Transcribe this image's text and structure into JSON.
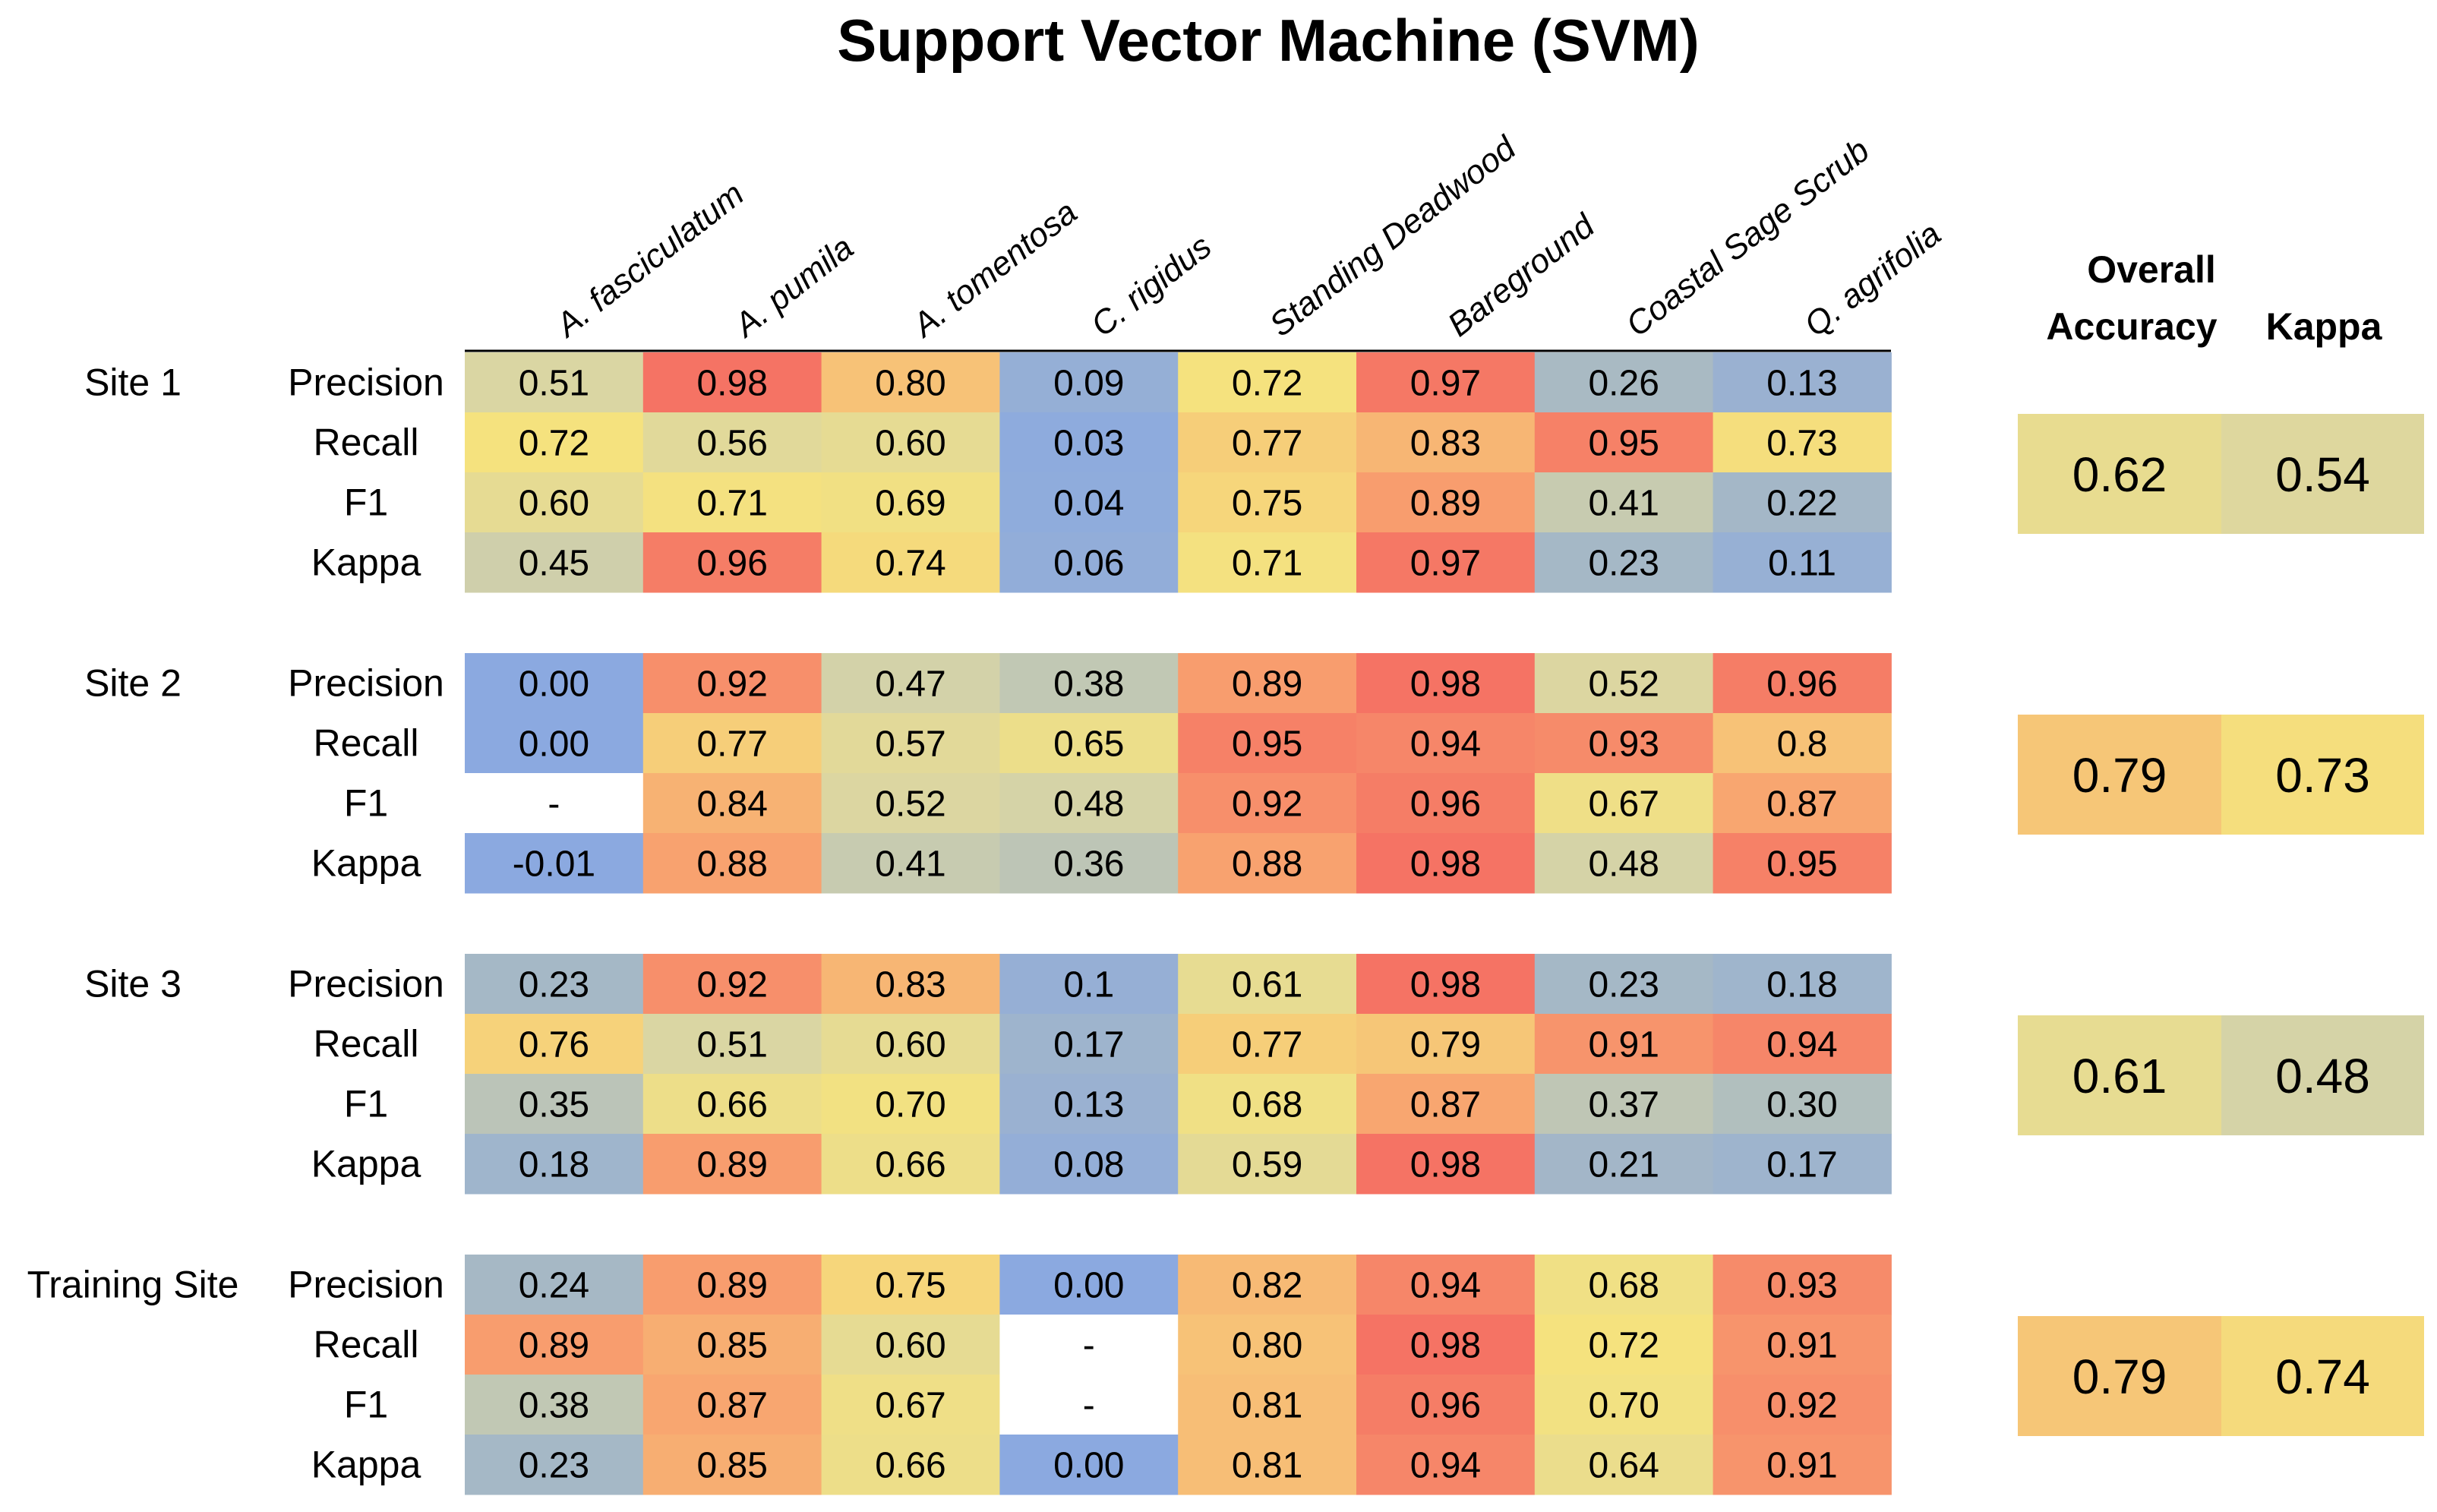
{
  "chart_data": {
    "type": "heatmap",
    "title": "Support Vector Machine (SVM)",
    "species": [
      "A. fasciculatum",
      "A. pumila",
      "A. tomentosa",
      "C.  rigidus",
      "Standing Deadwood",
      "Bareground",
      "Coastal Sage Scrub",
      "Q. agrifolia"
    ],
    "metrics": [
      "Precision",
      "Recall",
      "F1",
      "Kappa"
    ],
    "summary_headers": {
      "overall_line1": "Overall",
      "overall_line2": "Accuracy",
      "kappa": "Kappa"
    },
    "color_scale": {
      "low": "#8ba9e0",
      "mid_low": "#a7b9c4",
      "mid": "#d9d5a5",
      "mid_high": "#f5e27e",
      "high": "#f8a26f",
      "top": "#f46a62"
    },
    "sites": [
      {
        "name": "Site 1",
        "rows": [
          {
            "metric": "Precision",
            "values": [
              "0.51",
              "0.98",
              "0.80",
              "0.09",
              "0.72",
              "0.97",
              "0.26",
              "0.13"
            ]
          },
          {
            "metric": "Recall",
            "values": [
              "0.72",
              "0.56",
              "0.60",
              "0.03",
              "0.77",
              "0.83",
              "0.95",
              "0.73"
            ]
          },
          {
            "metric": "F1",
            "values": [
              "0.60",
              "0.71",
              "0.69",
              "0.04",
              "0.75",
              "0.89",
              "0.41",
              "0.22"
            ]
          },
          {
            "metric": "Kappa",
            "values": [
              "0.45",
              "0.96",
              "0.74",
              "0.06",
              "0.71",
              "0.97",
              "0.23",
              "0.11"
            ]
          }
        ],
        "overall_accuracy": "0.62",
        "kappa": "0.54"
      },
      {
        "name": "Site 2",
        "rows": [
          {
            "metric": "Precision",
            "values": [
              "0.00",
              "0.92",
              "0.47",
              "0.38",
              "0.89",
              "0.98",
              "0.52",
              "0.96"
            ]
          },
          {
            "metric": "Recall",
            "values": [
              "0.00",
              "0.77",
              "0.57",
              "0.65",
              "0.95",
              "0.94",
              "0.93",
              "0.8"
            ]
          },
          {
            "metric": "F1",
            "values": [
              "-",
              "0.84",
              "0.52",
              "0.48",
              "0.92",
              "0.96",
              "0.67",
              "0.87"
            ]
          },
          {
            "metric": "Kappa",
            "values": [
              "-0.01",
              "0.88",
              "0.41",
              "0.36",
              "0.88",
              "0.98",
              "0.48",
              "0.95"
            ]
          }
        ],
        "overall_accuracy": "0.79",
        "kappa": "0.73"
      },
      {
        "name": "Site 3",
        "rows": [
          {
            "metric": "Precision",
            "values": [
              "0.23",
              "0.92",
              "0.83",
              "0.1",
              "0.61",
              "0.98",
              "0.23",
              "0.18"
            ]
          },
          {
            "metric": "Recall",
            "values": [
              "0.76",
              "0.51",
              "0.60",
              "0.17",
              "0.77",
              "0.79",
              "0.91",
              "0.94"
            ]
          },
          {
            "metric": "F1",
            "values": [
              "0.35",
              "0.66",
              "0.70",
              "0.13",
              "0.68",
              "0.87",
              "0.37",
              "0.30"
            ]
          },
          {
            "metric": "Kappa",
            "values": [
              "0.18",
              "0.89",
              "0.66",
              "0.08",
              "0.59",
              "0.98",
              "0.21",
              "0.17"
            ]
          }
        ],
        "overall_accuracy": "0.61",
        "kappa": "0.48"
      },
      {
        "name": "Training Site",
        "rows": [
          {
            "metric": "Precision",
            "values": [
              "0.24",
              "0.89",
              "0.75",
              "0.00",
              "0.82",
              "0.94",
              "0.68",
              "0.93"
            ]
          },
          {
            "metric": "Recall",
            "values": [
              "0.89",
              "0.85",
              "0.60",
              "-",
              "0.80",
              "0.98",
              "0.72",
              "0.91"
            ]
          },
          {
            "metric": "F1",
            "values": [
              "0.38",
              "0.87",
              "0.67",
              "-",
              "0.81",
              "0.96",
              "0.70",
              "0.92"
            ]
          },
          {
            "metric": "Kappa",
            "values": [
              "0.23",
              "0.85",
              "0.66",
              "0.00",
              "0.81",
              "0.94",
              "0.64",
              "0.91"
            ]
          }
        ],
        "overall_accuracy": "0.79",
        "kappa": "0.74"
      }
    ]
  }
}
